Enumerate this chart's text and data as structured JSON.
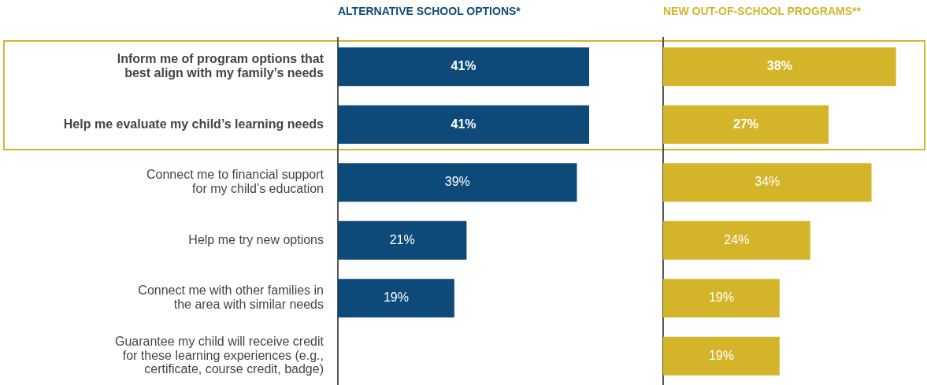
{
  "chart_data": [
    {
      "type": "bar",
      "orientation": "horizontal",
      "title": "ALTERNATIVE SCHOOL OPTIONS*",
      "categories": [
        "Inform me of program options that best align with my family’s needs",
        "Help me evaluate my child’s learning needs",
        "Connect me to financial support for my child’s education",
        "Help me try new options",
        "Connect me with other families in the area with similar needs",
        "Guarantee my child will receive credit for these learning experiences (e.g., certificate, course credit, badge)"
      ],
      "values": [
        41,
        41,
        39,
        21,
        19,
        null
      ],
      "value_labels": [
        "41%",
        "41%",
        "39%",
        "21%",
        "19%",
        null
      ],
      "color": "#0d4a7a",
      "tick_labels": "y"
    },
    {
      "type": "bar",
      "orientation": "horizontal",
      "title": "NEW OUT-OF-SCHOOL PROGRAMS**",
      "categories": [
        null,
        null,
        null,
        null,
        null,
        null
      ],
      "values": [
        38,
        27,
        34,
        24,
        19,
        19
      ],
      "value_labels": [
        "38%",
        "27%",
        "34%",
        "24%",
        "19%",
        "19%"
      ],
      "color": "#d4b52a",
      "tick_labels": false
    }
  ]
}
